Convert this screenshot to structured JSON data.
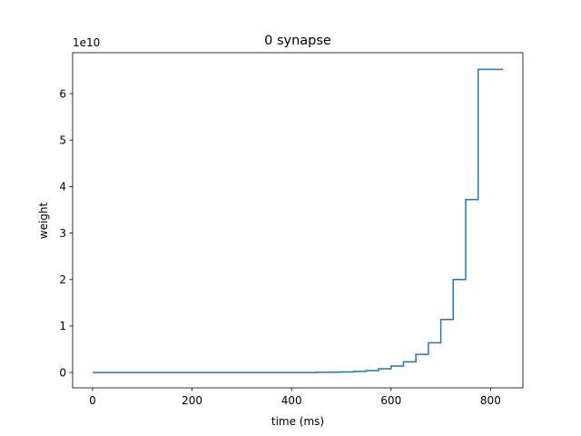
{
  "chart_data": {
    "type": "line",
    "step": "post",
    "title": "0 synapse",
    "xlabel": "time (ms)",
    "ylabel": "weight",
    "y_offset_label": "1e10",
    "xlim": [
      -40,
      865
    ],
    "ylim": [
      -0.33,
      6.88
    ],
    "y_scale_multiplier": 10000000000,
    "x_ticks": [
      0,
      200,
      400,
      600,
      800
    ],
    "x_tick_labels": [
      "0",
      "200",
      "400",
      "600",
      "800"
    ],
    "y_ticks": [
      0,
      1,
      2,
      3,
      4,
      5,
      6
    ],
    "y_tick_labels": [
      "0",
      "1",
      "2",
      "3",
      "4",
      "5",
      "6"
    ],
    "grid": false,
    "series": [
      {
        "color": "#1f77b4",
        "x": [
          0,
          450,
          475,
          500,
          525,
          550,
          575,
          600,
          625,
          650,
          675,
          700,
          725,
          750,
          775,
          800,
          825
        ],
        "y": [
          0.0,
          0.004,
          0.008,
          0.013,
          0.024,
          0.04,
          0.08,
          0.14,
          0.23,
          0.39,
          0.64,
          1.14,
          2.0,
          3.72,
          6.52,
          6.52,
          6.52
        ],
        "y_units_note_omitted": true
      }
    ]
  }
}
